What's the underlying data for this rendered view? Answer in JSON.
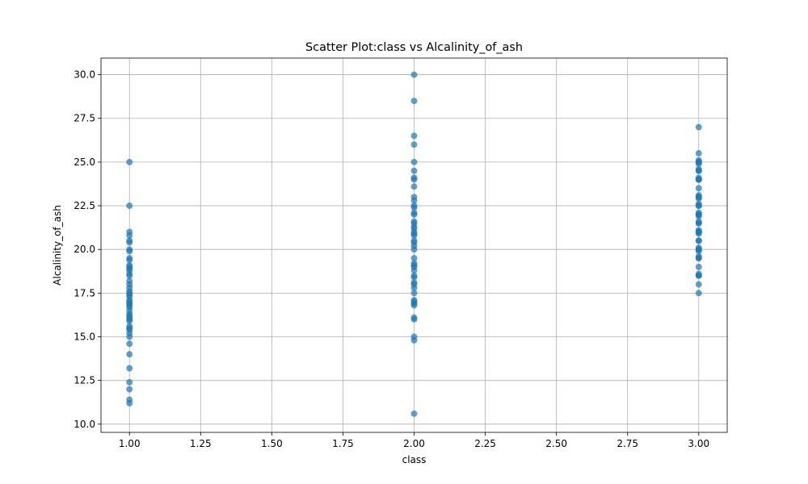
{
  "chart_data": {
    "type": "scatter",
    "title": "Scatter Plot:class vs Alcalinity_of_ash",
    "xlabel": "class",
    "ylabel": "Alcalinity_of_ash",
    "xlim": [
      0.9,
      3.1
    ],
    "ylim": [
      9.53,
      30.95
    ],
    "xticks": [
      1.0,
      1.25,
      1.5,
      1.75,
      2.0,
      2.25,
      2.5,
      2.75,
      3.0
    ],
    "xtick_labels": [
      "1.00",
      "1.25",
      "1.50",
      "1.75",
      "2.00",
      "2.25",
      "2.50",
      "2.75",
      "3.00"
    ],
    "yticks": [
      10.0,
      12.5,
      15.0,
      17.5,
      20.0,
      22.5,
      25.0,
      27.5,
      30.0
    ],
    "ytick_labels": [
      "10.0",
      "12.5",
      "15.0",
      "17.5",
      "20.0",
      "22.5",
      "25.0",
      "27.5",
      "30.0"
    ],
    "grid": true,
    "marker_color": "#1f77b4",
    "marker_alpha": 0.7,
    "series": [
      {
        "x": [
          1,
          1,
          1,
          1,
          1,
          1,
          1,
          1,
          1,
          1,
          1,
          1,
          1,
          1,
          1,
          1,
          1,
          1,
          1,
          1,
          1,
          1,
          1,
          1,
          1,
          1,
          1,
          1,
          1,
          1,
          1,
          1,
          1,
          1,
          1,
          1,
          1,
          1,
          1,
          1,
          1,
          1,
          1,
          1,
          1,
          1
        ],
        "y": [
          25.0,
          22.5,
          21.0,
          20.8,
          20.5,
          20.4,
          20.0,
          19.9,
          19.5,
          19.4,
          19.1,
          18.9,
          18.8,
          18.6,
          18.5,
          18.0,
          17.8,
          17.6,
          17.5,
          17.3,
          17.1,
          17.0,
          16.9,
          16.7,
          16.5,
          16.3,
          16.2,
          16.0,
          15.9,
          15.6,
          15.5,
          15.4,
          15.2,
          15.0,
          14.6,
          14.0,
          13.2,
          12.4,
          12.0,
          11.4,
          11.2,
          16.8,
          17.4,
          18.2,
          19.0,
          16.1
        ]
      },
      {
        "x": [
          2,
          2,
          2,
          2,
          2,
          2,
          2,
          2,
          2,
          2,
          2,
          2,
          2,
          2,
          2,
          2,
          2,
          2,
          2,
          2,
          2,
          2,
          2,
          2,
          2,
          2,
          2,
          2,
          2,
          2,
          2,
          2,
          2,
          2,
          2,
          2,
          2,
          2,
          2,
          2,
          2,
          2,
          2,
          2,
          2,
          2
        ],
        "y": [
          30.0,
          28.5,
          26.5,
          26.0,
          25.0,
          24.5,
          24.0,
          23.6,
          23.0,
          22.8,
          22.5,
          22.0,
          21.6,
          21.5,
          21.0,
          20.8,
          20.5,
          20.4,
          20.0,
          19.5,
          19.0,
          18.8,
          18.5,
          18.0,
          17.8,
          17.5,
          17.0,
          16.8,
          16.0,
          15.0,
          14.8,
          10.6,
          22.4,
          21.2,
          20.2,
          19.1,
          18.1,
          16.1,
          21.3,
          18.4,
          19.2,
          22.1,
          24.1,
          20.9,
          17.1,
          16.9
        ]
      },
      {
        "x": [
          3,
          3,
          3,
          3,
          3,
          3,
          3,
          3,
          3,
          3,
          3,
          3,
          3,
          3,
          3,
          3,
          3,
          3,
          3,
          3,
          3,
          3,
          3,
          3,
          3,
          3,
          3,
          3,
          3,
          3,
          3,
          3,
          3,
          3,
          3,
          3,
          3,
          3,
          3,
          3,
          3,
          3,
          3,
          3,
          3,
          3,
          3,
          3
        ],
        "y": [
          27.0,
          25.5,
          25.0,
          24.5,
          24.0,
          23.5,
          23.0,
          22.5,
          22.0,
          21.5,
          21.0,
          20.5,
          20.0,
          19.5,
          19.0,
          18.5,
          18.0,
          17.5,
          25.1,
          24.6,
          24.1,
          23.1,
          22.6,
          22.1,
          21.6,
          21.1,
          20.1,
          19.6,
          18.6,
          24.9,
          22.9,
          21.9,
          20.9,
          19.9,
          25.0,
          24.0,
          22.0,
          21.0,
          20.0,
          24.5,
          23.0,
          21.5,
          19.5,
          18.5,
          22.5,
          20.5,
          24.0,
          21.0
        ]
      }
    ]
  }
}
